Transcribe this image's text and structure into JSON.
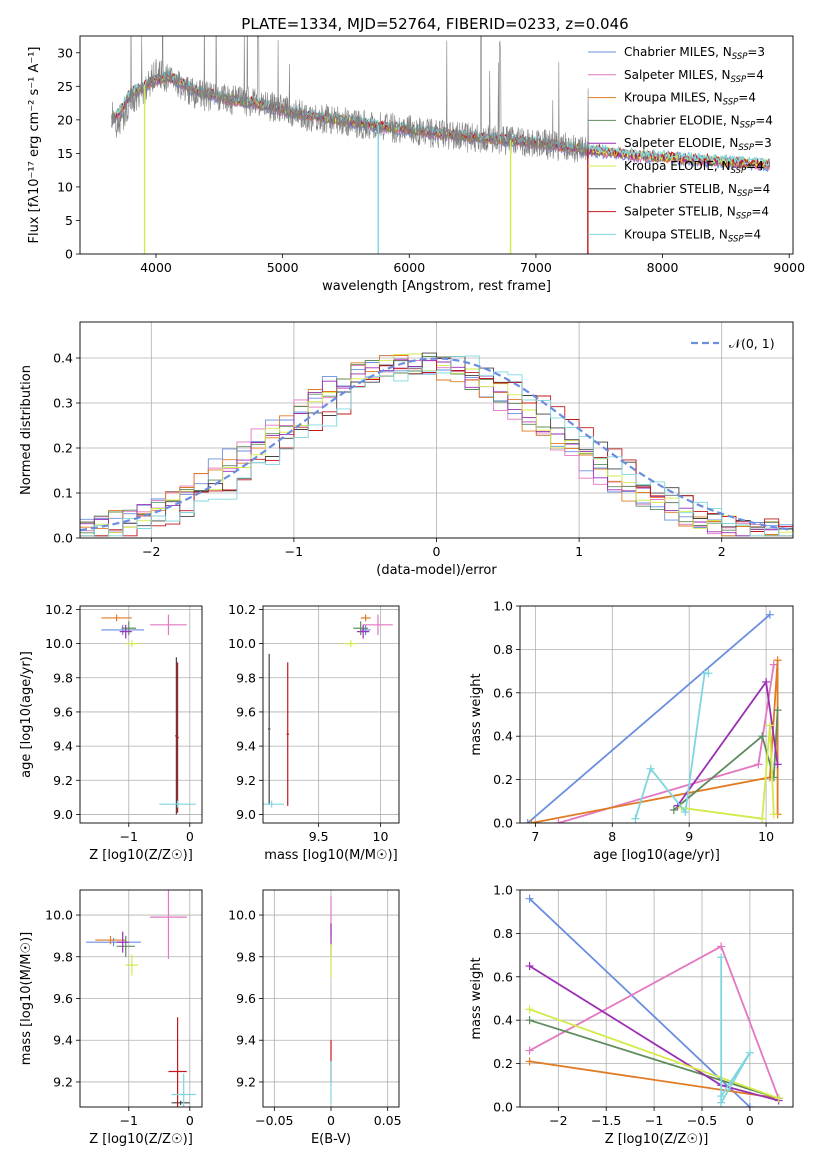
{
  "figure": {
    "title": "PLATE=1334, MJD=52764, FIBERID=0233, z=0.046"
  },
  "legend_entries": [
    {
      "id": "cm",
      "label": "Chabrier MILES, N",
      "sub": "SSP",
      "suffix": "=3",
      "color": "#6a8fe0"
    },
    {
      "id": "sm",
      "label": "Salpeter MILES, N",
      "sub": "SSP",
      "suffix": "=4",
      "color": "#e377c2"
    },
    {
      "id": "km",
      "label": "Kroupa MILES, N",
      "sub": "SSP",
      "suffix": "=4",
      "color": "#e07b23"
    },
    {
      "id": "ce",
      "label": "Chabrier ELODIE, N",
      "sub": "SSP",
      "suffix": "=4",
      "color": "#5e8c5e"
    },
    {
      "id": "se",
      "label": "Salpeter ELODIE, N",
      "sub": "SSP",
      "suffix": "=3",
      "color": "#9a2fb5"
    },
    {
      "id": "ke",
      "label": "Kroupa ELODIE, N",
      "sub": "SSP",
      "suffix": "=4",
      "color": "#d4ea4a"
    },
    {
      "id": "cs",
      "label": "Chabrier STELIB, N",
      "sub": "SSP",
      "suffix": "=4",
      "color": "#444444"
    },
    {
      "id": "ss",
      "label": "Salpeter STELIB, N",
      "sub": "SSP",
      "suffix": "=4",
      "color": "#c2181b"
    },
    {
      "id": "ks",
      "label": "Kroupa STELIB, N",
      "sub": "SSP",
      "suffix": "=4",
      "color": "#7fd6de"
    }
  ],
  "chart_data": [
    {
      "id": "spectrum",
      "type": "line",
      "xlabel": "wavelength [Angstrom, rest frame]",
      "ylabel": "Flux [fλ10⁻¹⁷ erg cm⁻² s⁻¹ A⁻¹]",
      "xlim": [
        3400,
        9030
      ],
      "ylim": [
        0,
        32.5
      ],
      "xticks": [
        4000,
        5000,
        6000,
        7000,
        8000,
        9000
      ],
      "yticks": [
        0,
        5,
        10,
        15,
        20,
        25,
        30
      ],
      "data_x": [
        3650,
        3700,
        3800,
        3900,
        4000,
        4100,
        4200,
        4300,
        4400,
        4600,
        4800,
        5000,
        5200,
        5400,
        5600,
        5800,
        6000,
        6200,
        6400,
        6600,
        6800,
        7000,
        7200,
        7400,
        7600,
        7800,
        8000,
        8200,
        8400,
        8600,
        8800
      ],
      "data_y": [
        21,
        19,
        23,
        24,
        27,
        26,
        25,
        24,
        23.5,
        23,
        22.5,
        21.5,
        20.5,
        20,
        19.5,
        19,
        18.5,
        18,
        17.5,
        17,
        17,
        16.5,
        16,
        15.5,
        15,
        14.5,
        14.5,
        14,
        14,
        13.5,
        13
      ],
      "model_y": [
        20,
        21,
        24,
        25,
        26,
        26.5,
        25.5,
        24.5,
        24,
        23,
        22.5,
        21.5,
        20.8,
        20.2,
        19.6,
        19,
        18.6,
        18.1,
        17.7,
        17.3,
        17,
        16.6,
        16.1,
        15.6,
        15.2,
        14.7,
        14.5,
        14.2,
        14,
        13.7,
        13.4
      ],
      "dips": [
        {
          "series": "ke",
          "x": 3910
        },
        {
          "series": "ks",
          "x": 5755
        },
        {
          "series": "ke",
          "x": 6800
        },
        {
          "series": "ss",
          "x": 7410
        }
      ]
    },
    {
      "id": "residuals",
      "type": "histogram",
      "xlabel": "(data-model)/error",
      "ylabel": "Normed distribution",
      "xlim": [
        -2.5,
        2.5
      ],
      "ylim": [
        0,
        0.48
      ],
      "xticks": [
        -2,
        -1,
        0,
        1,
        2
      ],
      "yticks": [
        0.0,
        0.1,
        0.2,
        0.3,
        0.4
      ],
      "normal_label": "𝒩(0, 1)",
      "normal_color": "#6a8fe0"
    },
    {
      "id": "age_vs_Z",
      "type": "scatter",
      "xlabel": "Z [log10(Z/Z☉)]",
      "ylabel": "age  [log10(age/yr)]",
      "xlim": [
        -1.8,
        0.2
      ],
      "ylim": [
        8.95,
        10.22
      ],
      "xticks": [
        -1,
        0
      ],
      "yticks": [
        9.0,
        9.2,
        9.4,
        9.6,
        9.8,
        10.0,
        10.2
      ],
      "points": [
        {
          "s": "cm",
          "x": -1.1,
          "y": 10.08,
          "ex": 0.35,
          "ey": 0.03
        },
        {
          "s": "sm",
          "x": -0.35,
          "y": 10.11,
          "ex": 0.3,
          "ey": 0.06
        },
        {
          "s": "km",
          "x": -1.2,
          "y": 10.15,
          "ex": 0.25,
          "ey": 0.02
        },
        {
          "s": "ce",
          "x": -1.0,
          "y": 10.09,
          "ex": 0.12,
          "ey": 0.04
        },
        {
          "s": "se",
          "x": -1.05,
          "y": 10.07,
          "ex": 0.1,
          "ey": 0.04
        },
        {
          "s": "ke",
          "x": -0.95,
          "y": 10.0,
          "ex": 0.1,
          "ey": 0.02
        },
        {
          "s": "cs",
          "x": -0.22,
          "y": 9.46,
          "ex": 0.02,
          "ey": 0.46
        },
        {
          "s": "ss",
          "x": -0.2,
          "y": 9.45,
          "ex": 0.02,
          "ey": 0.44
        },
        {
          "s": "ks",
          "x": -0.2,
          "y": 9.06,
          "ex": 0.3,
          "ey": 0.02
        }
      ]
    },
    {
      "id": "age_vs_mass",
      "type": "scatter",
      "xlabel": "mass [log10(M/M☉)]",
      "ylabel": "",
      "xlim": [
        9.05,
        10.15
      ],
      "ylim": [
        8.95,
        10.22
      ],
      "xticks": [
        9.5,
        10.0
      ],
      "yticks": [
        9.0,
        9.2,
        9.4,
        9.6,
        9.8,
        10.0,
        10.2
      ],
      "points": [
        {
          "s": "cm",
          "x": 9.88,
          "y": 10.08,
          "ex": 0.04,
          "ey": 0.03
        },
        {
          "s": "sm",
          "x": 9.98,
          "y": 10.11,
          "ex": 0.12,
          "ey": 0.06
        },
        {
          "s": "km",
          "x": 9.88,
          "y": 10.15,
          "ex": 0.04,
          "ey": 0.02
        },
        {
          "s": "ce",
          "x": 9.84,
          "y": 10.09,
          "ex": 0.06,
          "ey": 0.04
        },
        {
          "s": "se",
          "x": 9.86,
          "y": 10.07,
          "ex": 0.05,
          "ey": 0.04
        },
        {
          "s": "ke",
          "x": 9.76,
          "y": 10.0,
          "ex": 0.05,
          "ey": 0.02
        },
        {
          "s": "cs",
          "x": 9.1,
          "y": 9.5,
          "ex": 0.01,
          "ey": 0.44
        },
        {
          "s": "ss",
          "x": 9.25,
          "y": 9.47,
          "ex": 0.01,
          "ey": 0.42
        },
        {
          "s": "ks",
          "x": 9.12,
          "y": 9.06,
          "ex": 0.1,
          "ey": 0.02
        }
      ]
    },
    {
      "id": "mw_vs_age",
      "type": "line",
      "xlabel": "age  [log10(age/yr)]",
      "ylabel": "mass weight",
      "xlim": [
        6.8,
        10.35
      ],
      "ylim": [
        0,
        1.0
      ],
      "xticks": [
        7,
        8,
        9,
        10
      ],
      "yticks": [
        0.0,
        0.2,
        0.4,
        0.6,
        0.8,
        1.0
      ],
      "series": [
        {
          "s": "cm",
          "x": [
            6.9,
            10.05
          ],
          "y": [
            0.0,
            0.96
          ]
        },
        {
          "s": "sm",
          "x": [
            7.3,
            9.9,
            10.1
          ],
          "y": [
            0.0,
            0.27,
            0.73
          ]
        },
        {
          "s": "km",
          "x": [
            6.95,
            10.05,
            10.15,
            10.15
          ],
          "y": [
            0.0,
            0.21,
            0.75,
            0.04
          ]
        },
        {
          "s": "ce",
          "x": [
            8.8,
            9.95,
            10.1,
            10.15
          ],
          "y": [
            0.06,
            0.4,
            0.21,
            0.52
          ]
        },
        {
          "s": "se",
          "x": [
            8.85,
            10.0,
            10.15
          ],
          "y": [
            0.08,
            0.65,
            0.27
          ]
        },
        {
          "s": "ke",
          "x": [
            8.9,
            9.95,
            10.05,
            10.1
          ],
          "y": [
            0.07,
            0.02,
            0.45,
            0.04
          ]
        },
        {
          "s": "ks",
          "x": [
            8.3,
            8.5,
            8.95,
            9.2,
            9.25
          ],
          "y": [
            0.02,
            0.25,
            0.05,
            0.69,
            0.69
          ]
        }
      ]
    },
    {
      "id": "mass_vs_Z",
      "type": "scatter",
      "xlabel": "Z [log10(Z/Z☉)]",
      "ylabel": "mass [log10(M/M☉)]",
      "xlim": [
        -1.8,
        0.2
      ],
      "ylim": [
        9.08,
        10.12
      ],
      "xticks": [
        -1,
        0
      ],
      "yticks": [
        9.2,
        9.4,
        9.6,
        9.8,
        10.0
      ],
      "points": [
        {
          "s": "cm",
          "x": -1.25,
          "y": 9.87,
          "ex": 0.45,
          "ey": 0.02
        },
        {
          "s": "sm",
          "x": -0.35,
          "y": 9.99,
          "ex": 0.3,
          "ey": 0.2
        },
        {
          "s": "km",
          "x": -1.3,
          "y": 9.88,
          "ex": 0.25,
          "ey": 0.02
        },
        {
          "s": "ce",
          "x": -1.05,
          "y": 9.85,
          "ex": 0.15,
          "ey": 0.05
        },
        {
          "s": "se",
          "x": -1.1,
          "y": 9.87,
          "ex": 0.1,
          "ey": 0.05
        },
        {
          "s": "ke",
          "x": -0.95,
          "y": 9.76,
          "ex": 0.1,
          "ey": 0.05
        },
        {
          "s": "cs",
          "x": -0.15,
          "y": 9.1,
          "ex": 0.15,
          "ey": 0.01
        },
        {
          "s": "ss",
          "x": -0.2,
          "y": 9.25,
          "ex": 0.15,
          "ey": 0.26
        },
        {
          "s": "ks",
          "x": -0.1,
          "y": 9.14,
          "ex": 0.2,
          "ey": 0.1
        }
      ]
    },
    {
      "id": "mass_vs_ebv",
      "type": "scatter",
      "xlabel": "E(B-V)",
      "ylabel": "",
      "xlim": [
        -0.06,
        0.06
      ],
      "ylim": [
        9.08,
        10.12
      ],
      "xticks": [
        -0.05,
        0.0,
        0.05
      ],
      "yticks": [
        9.2,
        9.4,
        9.6,
        9.8,
        10.0
      ],
      "points": [
        {
          "s": "sm",
          "x": 0.0,
          "y": 9.99,
          "ex": 0,
          "ey": 0.1
        },
        {
          "s": "se",
          "x": 0.0,
          "y": 9.88,
          "ex": 0,
          "ey": 0.08
        },
        {
          "s": "ke",
          "x": 0.0,
          "y": 9.78,
          "ex": 0,
          "ey": 0.08
        },
        {
          "s": "ss",
          "x": 0.0,
          "y": 9.3,
          "ex": 0,
          "ey": 0.1
        },
        {
          "s": "ks",
          "x": 0.0,
          "y": 9.2,
          "ex": 0,
          "ey": 0.1
        }
      ]
    },
    {
      "id": "mw_vs_Z",
      "type": "line",
      "xlabel": "Z [log10(Z/Z☉)]",
      "ylabel": "mass weight",
      "xlim": [
        -2.4,
        0.45
      ],
      "ylim": [
        0,
        1.0
      ],
      "xticks": [
        -2.0,
        -1.5,
        -1.0,
        -0.5,
        0.0
      ],
      "yticks": [
        0.0,
        0.2,
        0.4,
        0.6,
        0.8,
        1.0
      ],
      "series": [
        {
          "s": "cm",
          "x": [
            -2.3,
            0.0
          ],
          "y": [
            0.96,
            0.0
          ]
        },
        {
          "s": "sm",
          "x": [
            -2.3,
            -0.3,
            0.3
          ],
          "y": [
            0.26,
            0.74,
            0.04
          ]
        },
        {
          "s": "km",
          "x": [
            -2.3,
            0.3
          ],
          "y": [
            0.21,
            0.04
          ]
        },
        {
          "s": "ce",
          "x": [
            -2.3,
            0.3
          ],
          "y": [
            0.4,
            0.04
          ]
        },
        {
          "s": "se",
          "x": [
            -2.3,
            -0.3,
            0.3
          ],
          "y": [
            0.65,
            0.1,
            0.03
          ]
        },
        {
          "s": "ke",
          "x": [
            -2.3,
            0.3
          ],
          "y": [
            0.45,
            0.04
          ]
        },
        {
          "s": "ks",
          "x": [
            -0.3,
            -0.3,
            0.0,
            -0.3
          ],
          "y": [
            0.69,
            0.02,
            0.25,
            0.05
          ]
        }
      ]
    }
  ]
}
